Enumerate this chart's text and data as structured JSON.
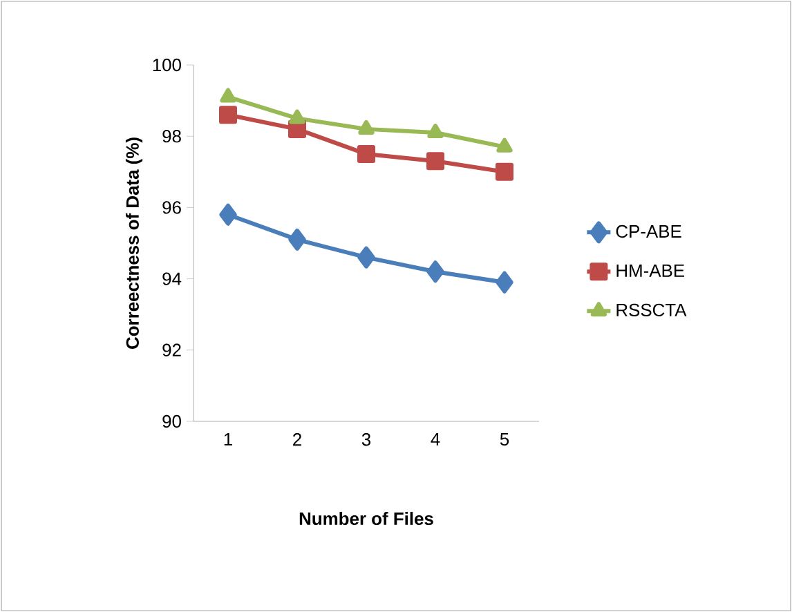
{
  "chart_data": {
    "type": "line",
    "xlabel": "Number of Files",
    "ylabel": "Correectness of Data (%)",
    "categories": [
      "1",
      "2",
      "3",
      "4",
      "5"
    ],
    "series": [
      {
        "name": "CP-ABE",
        "color": "#4a7ebb",
        "marker": "diamond",
        "values": [
          95.8,
          95.1,
          94.6,
          94.2,
          93.9
        ]
      },
      {
        "name": "HM-ABE",
        "color": "#be4b48",
        "marker": "square",
        "values": [
          98.6,
          98.2,
          97.5,
          97.3,
          97.0
        ]
      },
      {
        "name": "RSSCTA",
        "color": "#98b954",
        "marker": "triangle",
        "values": [
          99.1,
          98.5,
          98.2,
          98.1,
          97.7
        ]
      }
    ],
    "ylim": [
      90,
      100
    ],
    "yticks": [
      90,
      92,
      94,
      96,
      98,
      100
    ],
    "grid": false,
    "legend": "right"
  }
}
